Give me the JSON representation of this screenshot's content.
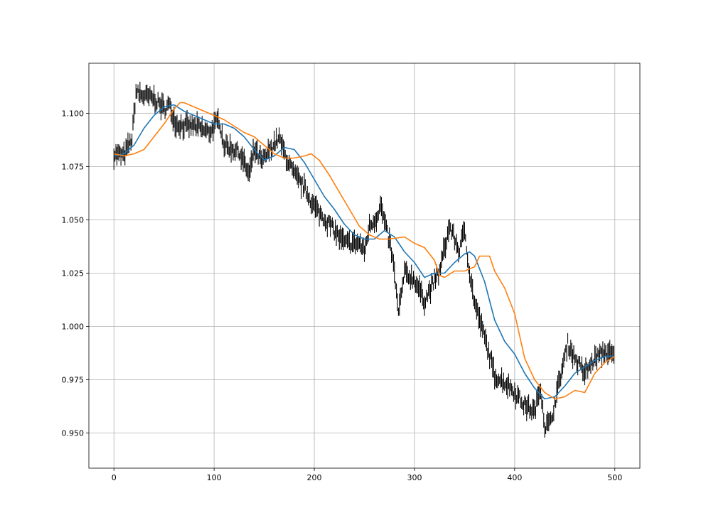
{
  "chart_data": {
    "type": "line",
    "title": "",
    "xlabel": "",
    "ylabel": "",
    "xlim": [
      -25,
      525
    ],
    "ylim": [
      0.9335,
      1.1235
    ],
    "x_ticks": [
      0,
      100,
      200,
      300,
      400,
      500
    ],
    "x_tick_labels": [
      "0",
      "100",
      "200",
      "300",
      "400",
      "500"
    ],
    "y_ticks": [
      0.95,
      0.975,
      1.0,
      1.025,
      1.05,
      1.075,
      1.1
    ],
    "y_tick_labels": [
      "0.950",
      "0.975",
      "1.000",
      "1.025",
      "1.050",
      "1.075",
      "1.100"
    ],
    "grid": true,
    "colors": {
      "price": "#000000",
      "fast_ma": "#1f77b4",
      "slow_ma": "#ff7f0e",
      "grid": "#b0b0b0"
    },
    "price_bars": {
      "note_x": "one vertical bar per index from 0 to 499",
      "x": [
        0,
        10,
        18,
        22,
        30,
        40,
        50,
        55,
        62,
        70,
        80,
        95,
        105,
        110,
        125,
        135,
        140,
        148,
        160,
        165,
        172,
        180,
        190,
        200,
        215,
        230,
        245,
        250,
        255,
        262,
        266,
        272,
        276,
        280,
        284,
        290,
        300,
        310,
        325,
        335,
        345,
        350,
        355,
        360,
        370,
        380,
        395,
        410,
        420,
        426,
        430,
        436,
        445,
        453,
        460,
        470,
        480,
        490,
        499
      ],
      "close": [
        1.081,
        1.08,
        1.088,
        1.11,
        1.108,
        1.107,
        1.102,
        1.104,
        1.095,
        1.094,
        1.094,
        1.091,
        1.097,
        1.085,
        1.082,
        1.071,
        1.083,
        1.077,
        1.086,
        1.088,
        1.079,
        1.071,
        1.065,
        1.056,
        1.048,
        1.039,
        1.039,
        1.035,
        1.047,
        1.051,
        1.057,
        1.045,
        1.038,
        1.025,
        1.006,
        1.025,
        1.022,
        1.012,
        1.026,
        1.047,
        1.035,
        1.046,
        1.025,
        1.011,
        0.995,
        0.977,
        0.972,
        0.963,
        0.96,
        0.972,
        0.953,
        0.955,
        0.975,
        0.992,
        0.985,
        0.978,
        0.985,
        0.988,
        0.986
      ],
      "bar_half_range": 0.0035
    },
    "series": [
      {
        "color": "#1f77b4",
        "x": [
          0,
          10,
          20,
          30,
          40,
          50,
          60,
          70,
          80,
          90,
          100,
          110,
          120,
          130,
          140,
          150,
          160,
          170,
          180,
          190,
          200,
          210,
          220,
          230,
          240,
          250,
          260,
          270,
          280,
          290,
          300,
          310,
          320,
          330,
          340,
          350,
          355,
          360,
          370,
          380,
          390,
          400,
          410,
          420,
          430,
          440,
          450,
          460,
          470,
          480,
          490,
          500
        ],
        "values": [
          1.08,
          1.081,
          1.085,
          1.093,
          1.099,
          1.103,
          1.104,
          1.101,
          1.099,
          1.097,
          1.095,
          1.095,
          1.093,
          1.089,
          1.083,
          1.078,
          1.08,
          1.084,
          1.083,
          1.077,
          1.069,
          1.061,
          1.055,
          1.048,
          1.043,
          1.041,
          1.041,
          1.045,
          1.042,
          1.035,
          1.03,
          1.023,
          1.025,
          1.025,
          1.03,
          1.034,
          1.035,
          1.033,
          1.021,
          1.003,
          0.993,
          0.987,
          0.978,
          0.971,
          0.966,
          0.967,
          0.972,
          0.978,
          0.981,
          0.984,
          0.986,
          0.986
        ]
      },
      {
        "color": "#ff7f0e",
        "x": [
          0,
          10,
          20,
          30,
          40,
          50,
          60,
          66,
          70,
          80,
          90,
          100,
          110,
          120,
          130,
          140,
          150,
          160,
          170,
          180,
          190,
          197,
          205,
          215,
          225,
          235,
          245,
          255,
          265,
          275,
          290,
          300,
          310,
          320,
          325,
          330,
          340,
          350,
          360,
          365,
          370,
          375,
          380,
          390,
          400,
          410,
          420,
          430,
          440,
          450,
          460,
          470,
          480,
          490,
          500
        ],
        "values": [
          1.081,
          1.08,
          1.081,
          1.083,
          1.089,
          1.095,
          1.102,
          1.105,
          1.105,
          1.103,
          1.101,
          1.099,
          1.097,
          1.094,
          1.091,
          1.089,
          1.085,
          1.081,
          1.079,
          1.079,
          1.08,
          1.081,
          1.078,
          1.071,
          1.063,
          1.055,
          1.047,
          1.043,
          1.041,
          1.041,
          1.042,
          1.039,
          1.037,
          1.031,
          1.024,
          1.023,
          1.026,
          1.026,
          1.028,
          1.033,
          1.033,
          1.033,
          1.026,
          1.018,
          1.006,
          0.985,
          0.975,
          0.969,
          0.966,
          0.967,
          0.97,
          0.969,
          0.978,
          0.983,
          0.986
        ]
      }
    ]
  }
}
